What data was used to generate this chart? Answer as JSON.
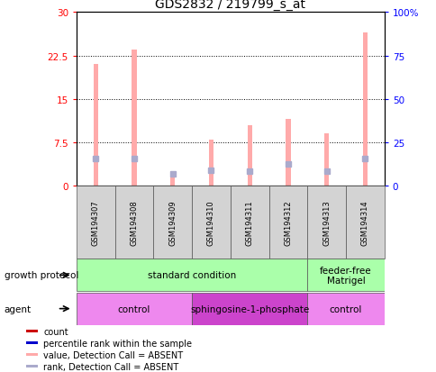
{
  "title": "GDS2832 / 219799_s_at",
  "samples": [
    "GSM194307",
    "GSM194308",
    "GSM194309",
    "GSM194310",
    "GSM194311",
    "GSM194312",
    "GSM194313",
    "GSM194314"
  ],
  "count_values": [
    21.0,
    23.5,
    2.5,
    8.0,
    10.5,
    11.5,
    9.0,
    26.5
  ],
  "rank_values": [
    15.5,
    15.8,
    6.5,
    9.0,
    8.5,
    12.5,
    8.5,
    15.5
  ],
  "absent_count": [
    true,
    true,
    true,
    true,
    true,
    true,
    true,
    true
  ],
  "absent_rank": [
    true,
    true,
    true,
    true,
    true,
    true,
    true,
    true
  ],
  "ylim_left": [
    0,
    30
  ],
  "ylim_right": [
    0,
    100
  ],
  "yticks_left": [
    0,
    7.5,
    15,
    22.5,
    30
  ],
  "ytick_labels_left": [
    "0",
    "7.5",
    "15",
    "22.5",
    "30"
  ],
  "yticks_right": [
    0,
    25,
    50,
    75,
    100
  ],
  "ytick_labels_right": [
    "0",
    "25",
    "50",
    "75",
    "100%"
  ],
  "hlines": [
    7.5,
    15,
    22.5
  ],
  "bar_color_absent": "#ffaaaa",
  "bar_color_present": "#ff0000",
  "rank_color_absent": "#aaaacc",
  "rank_color_present": "#0000cc",
  "growth_protocol_groups": [
    {
      "label": "standard condition",
      "start": 0,
      "end": 6,
      "color": "#aaffaa"
    },
    {
      "label": "feeder-free\nMatrigel",
      "start": 6,
      "end": 8,
      "color": "#aaffaa"
    }
  ],
  "agent_groups": [
    {
      "label": "control",
      "start": 0,
      "end": 3,
      "color": "#ee88ee"
    },
    {
      "label": "sphingosine-1-phosphate",
      "start": 3,
      "end": 6,
      "color": "#cc44cc"
    },
    {
      "label": "control",
      "start": 6,
      "end": 8,
      "color": "#ee88ee"
    }
  ],
  "legend_items": [
    {
      "color": "#cc0000",
      "label": "count"
    },
    {
      "color": "#0000cc",
      "label": "percentile rank within the sample"
    },
    {
      "color": "#ffaaaa",
      "label": "value, Detection Call = ABSENT"
    },
    {
      "color": "#aaaacc",
      "label": "rank, Detection Call = ABSENT"
    }
  ],
  "growth_label": "growth protocol",
  "agent_label": "agent",
  "title_fontsize": 10,
  "tick_fontsize": 7.5,
  "sample_fontsize": 6,
  "legend_fontsize": 7,
  "row_fontsize": 7.5,
  "bar_width": 0.12
}
